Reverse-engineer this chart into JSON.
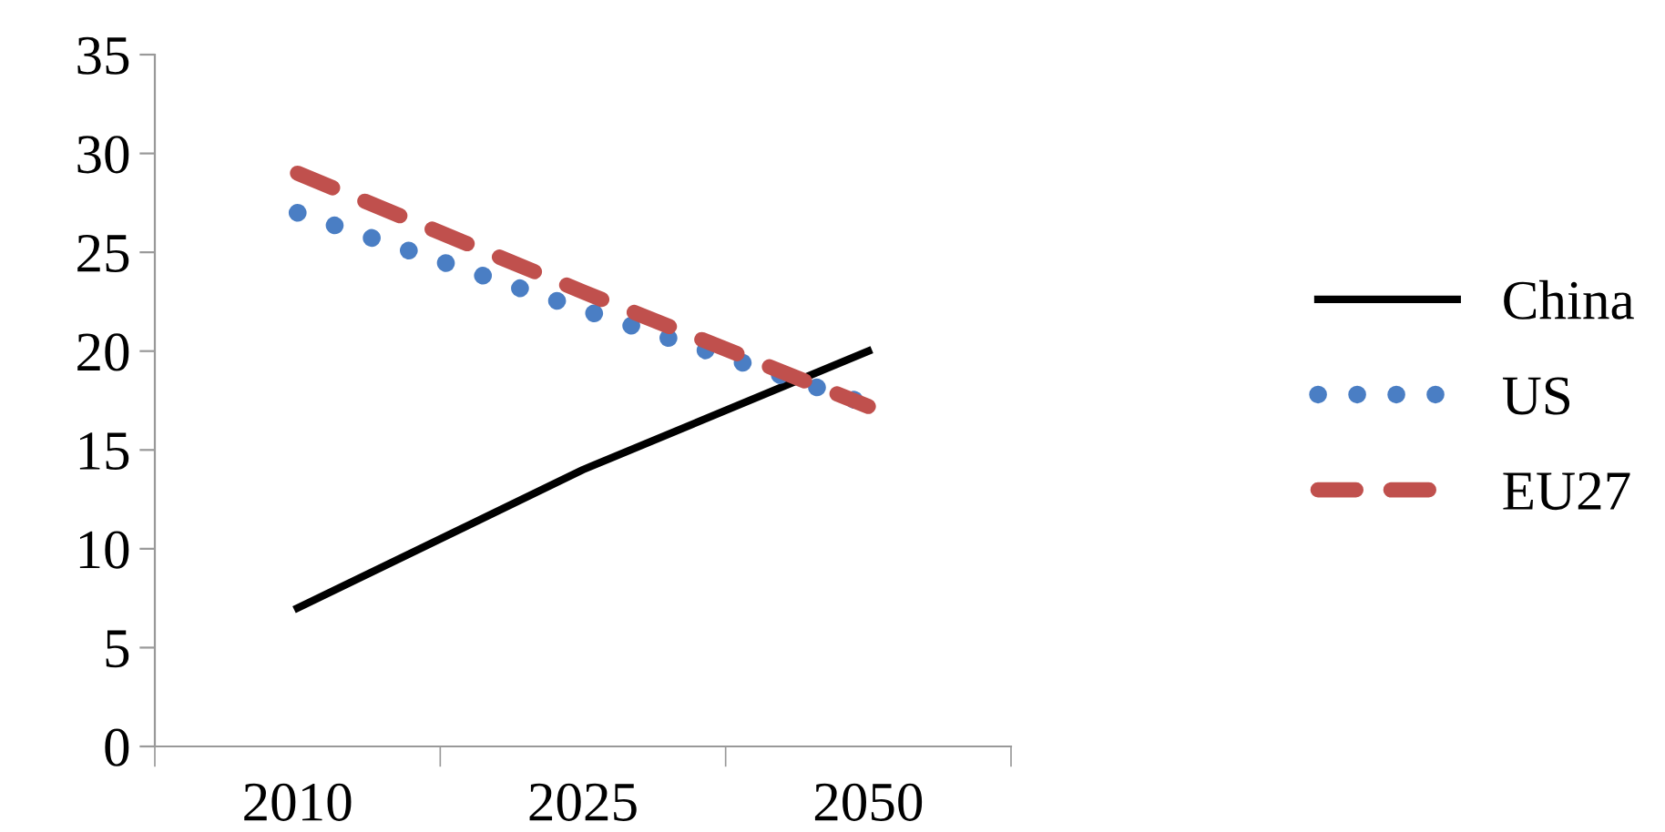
{
  "chart_data": {
    "type": "line",
    "categories": [
      "2010",
      "2025",
      "2050"
    ],
    "series": [
      {
        "name": "China",
        "color": "#000000",
        "line_style": "solid",
        "values": [
          7,
          14,
          20
        ]
      },
      {
        "name": "US",
        "color": "#4a7ec4",
        "line_style": "dotted",
        "values": [
          27,
          22.1,
          17.3
        ]
      },
      {
        "name": "EU27",
        "color": "#c0504d",
        "line_style": "dashed",
        "values": [
          29,
          23,
          17.2
        ]
      }
    ],
    "ylim": [
      0,
      35
    ],
    "yticks": [
      0,
      5,
      10,
      15,
      20,
      25,
      30,
      35
    ],
    "grid": false,
    "legend": "right",
    "marker": "none"
  }
}
